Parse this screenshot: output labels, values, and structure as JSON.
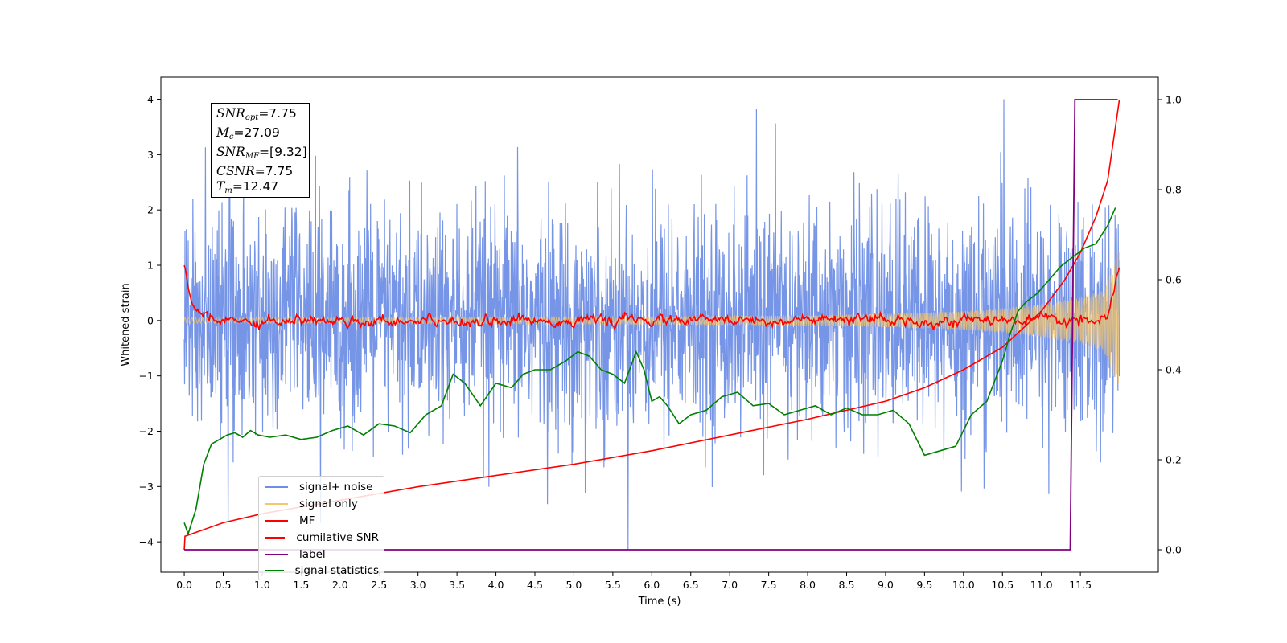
{
  "chart_data": {
    "type": "line",
    "xlabel": "Time (s)",
    "ylabel": "Whitened strain",
    "xlim": [
      -0.3,
      12.5
    ],
    "ylim": [
      -4.55,
      4.4
    ],
    "y2lim": [
      -0.05,
      1.05
    ],
    "x_ticks": [
      "0.0",
      "0.5",
      "1.0",
      "1.5",
      "2.0",
      "2.5",
      "3.0",
      "3.5",
      "4.0",
      "4.5",
      "5.0",
      "5.5",
      "6.0",
      "6.5",
      "7.0",
      "7.5",
      "8.0",
      "8.5",
      "9.0",
      "9.5",
      "10.0",
      "10.5",
      "11.0",
      "11.5"
    ],
    "y_ticks": [
      "−4",
      "−3",
      "−2",
      "−1",
      "0",
      "1",
      "2",
      "3",
      "4"
    ],
    "y2_ticks": [
      "0.0",
      "0.2",
      "0.4",
      "0.6",
      "0.8",
      "1.0"
    ],
    "annotation": [
      {
        "sym": "SNR",
        "sub": "opt",
        "value": "=7.75"
      },
      {
        "sym": "M",
        "sub": "c",
        "value": "=27.09"
      },
      {
        "sym": "SNR",
        "sub": "MF",
        "value": "=[9.32]"
      },
      {
        "sym": "CSNR",
        "sub": "",
        "value": "=7.75"
      },
      {
        "sym": "T",
        "sub": "m",
        "value": "=12.47"
      }
    ],
    "legend": {
      "location": "lower-left",
      "entries": [
        {
          "label": "signal+ noise",
          "color": "#6f8fe6"
        },
        {
          "label": "signal only",
          "color": "#f5c66a"
        },
        {
          "label": "MF",
          "color": "#ff0000"
        },
        {
          "label": "cumilative SNR",
          "color": "#ff0000"
        },
        {
          "label": "label",
          "color": "#800080"
        },
        {
          "label": "signal statistics",
          "color": "#008000"
        }
      ]
    },
    "series": [
      {
        "name": "signal+ noise",
        "axis": "left",
        "color": "#6f8fe6",
        "description_x": [
          0.0,
          12.0
        ],
        "amplitude_range": [
          -4.15,
          4.0
        ],
        "typical_std": 1.0
      },
      {
        "name": "signal only",
        "axis": "left",
        "color": "#f5c66a",
        "x": [
          0.0,
          2.0,
          4.0,
          6.0,
          8.0,
          9.0,
          10.0,
          10.5,
          11.0,
          11.5,
          11.8,
          12.0
        ],
        "envelope": [
          0.05,
          0.05,
          0.06,
          0.07,
          0.09,
          0.12,
          0.17,
          0.22,
          0.3,
          0.42,
          0.55,
          1.3
        ]
      },
      {
        "name": "MF",
        "axis": "left",
        "color": "#ff0000",
        "x": [
          0.0,
          0.02,
          0.05,
          0.1,
          0.15,
          0.2,
          0.3,
          12.0
        ],
        "y": [
          1.0,
          0.9,
          0.6,
          0.3,
          0.2,
          0.15,
          0.1,
          1.0
        ],
        "noise_std": 0.07
      },
      {
        "name": "cumilative SNR",
        "axis": "right",
        "color": "#ff0000",
        "x": [
          0.0,
          0.01,
          0.5,
          1.0,
          2.0,
          3.0,
          4.0,
          5.0,
          6.0,
          7.0,
          8.0,
          8.5,
          9.0,
          9.5,
          10.0,
          10.5,
          11.0,
          11.3,
          11.5,
          11.7,
          11.85,
          12.0
        ],
        "y": [
          0.0,
          0.03,
          0.06,
          0.08,
          0.11,
          0.14,
          0.165,
          0.19,
          0.22,
          0.255,
          0.29,
          0.31,
          0.33,
          0.36,
          0.4,
          0.45,
          0.53,
          0.6,
          0.66,
          0.74,
          0.82,
          1.0
        ]
      },
      {
        "name": "label",
        "axis": "right",
        "color": "#800080",
        "x": [
          0.0,
          11.37,
          11.43,
          11.98
        ],
        "y": [
          0.0,
          0.0,
          1.0,
          1.0
        ]
      },
      {
        "name": "signal statistics",
        "axis": "right",
        "color": "#008000",
        "x": [
          0.0,
          0.05,
          0.15,
          0.25,
          0.35,
          0.45,
          0.55,
          0.65,
          0.75,
          0.85,
          0.95,
          1.1,
          1.3,
          1.5,
          1.7,
          1.9,
          2.1,
          2.3,
          2.5,
          2.7,
          2.9,
          3.1,
          3.3,
          3.45,
          3.6,
          3.8,
          4.0,
          4.2,
          4.35,
          4.5,
          4.7,
          4.9,
          5.05,
          5.2,
          5.35,
          5.5,
          5.65,
          5.8,
          5.9,
          6.0,
          6.1,
          6.2,
          6.35,
          6.5,
          6.7,
          6.9,
          7.1,
          7.3,
          7.5,
          7.7,
          7.9,
          8.1,
          8.3,
          8.5,
          8.7,
          8.9,
          9.1,
          9.3,
          9.5,
          9.7,
          9.9,
          10.1,
          10.3,
          10.5,
          10.6,
          10.7,
          10.8,
          10.95,
          11.1,
          11.25,
          11.4,
          11.55,
          11.7,
          11.85,
          11.95
        ],
        "y": [
          0.06,
          0.035,
          0.09,
          0.19,
          0.235,
          0.245,
          0.255,
          0.26,
          0.25,
          0.265,
          0.255,
          0.25,
          0.255,
          0.245,
          0.25,
          0.265,
          0.275,
          0.255,
          0.28,
          0.275,
          0.26,
          0.3,
          0.32,
          0.39,
          0.37,
          0.32,
          0.37,
          0.36,
          0.39,
          0.4,
          0.4,
          0.42,
          0.44,
          0.43,
          0.4,
          0.39,
          0.37,
          0.44,
          0.4,
          0.33,
          0.34,
          0.32,
          0.28,
          0.3,
          0.31,
          0.34,
          0.35,
          0.32,
          0.325,
          0.3,
          0.31,
          0.32,
          0.3,
          0.315,
          0.3,
          0.3,
          0.31,
          0.28,
          0.21,
          0.22,
          0.23,
          0.3,
          0.33,
          0.42,
          0.48,
          0.53,
          0.55,
          0.57,
          0.6,
          0.63,
          0.65,
          0.67,
          0.68,
          0.72,
          0.76
        ]
      }
    ]
  }
}
